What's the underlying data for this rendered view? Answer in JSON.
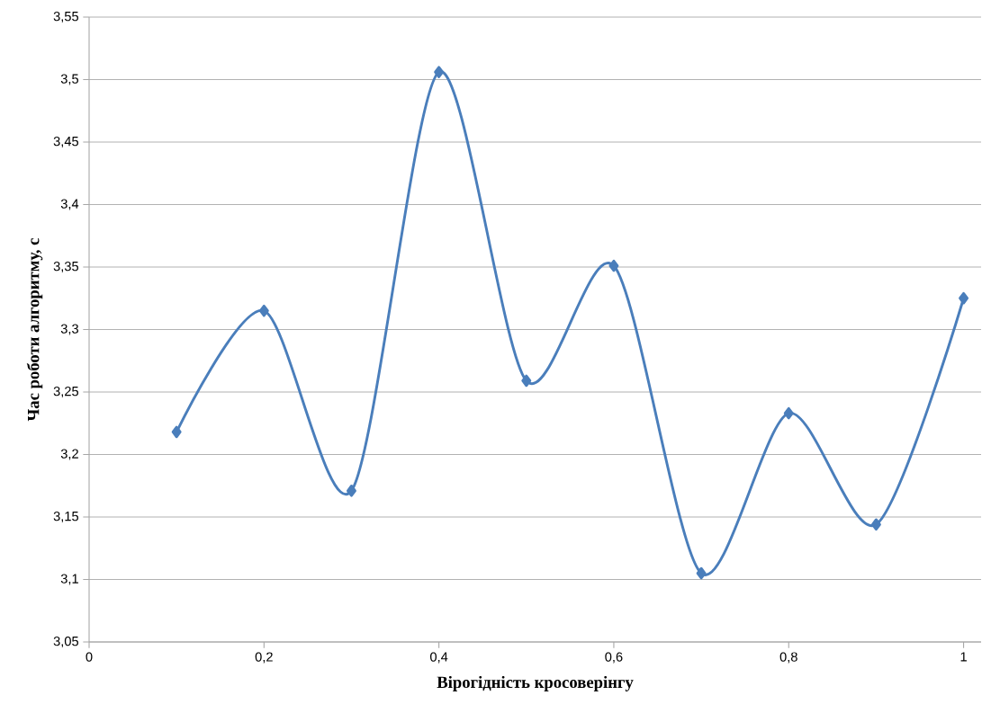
{
  "chart_data": {
    "type": "line",
    "xlabel": "Вірогідність  кросоверінгу",
    "ylabel": "Час роботи алгоритму, с",
    "x": [
      0.1,
      0.2,
      0.3,
      0.4,
      0.5,
      0.6,
      0.7,
      0.8,
      0.9,
      1.0
    ],
    "series": [
      {
        "color": "#4a7ebb",
        "values": [
          3.218,
          3.315,
          3.171,
          3.506,
          3.259,
          3.351,
          3.105,
          3.233,
          3.144,
          3.325
        ]
      }
    ],
    "xlim": [
      0,
      1.02
    ],
    "ylim": [
      3.05,
      3.55
    ],
    "xticks": [
      0,
      {
        "value": 0.2,
        "label": "0,2"
      },
      {
        "value": 0.4,
        "label": "0,4"
      },
      {
        "value": 0.6,
        "label": "0,6"
      },
      {
        "value": 0.8,
        "label": "0,8"
      },
      1
    ],
    "yticks": [
      {
        "value": 3.05,
        "label": "3,05"
      },
      {
        "value": 3.1,
        "label": "3,1"
      },
      {
        "value": 3.15,
        "label": "3,15"
      },
      {
        "value": 3.2,
        "label": "3,2"
      },
      {
        "value": 3.25,
        "label": "3,25"
      },
      {
        "value": 3.3,
        "label": "3,3"
      },
      {
        "value": 3.35,
        "label": "3,35"
      },
      {
        "value": 3.4,
        "label": "3,4"
      },
      {
        "value": 3.45,
        "label": "3,45"
      },
      {
        "value": 3.5,
        "label": "3,5"
      },
      {
        "value": 3.55,
        "label": "3,55"
      }
    ],
    "grid": "y",
    "marker": "diamond",
    "line_style": "solid"
  }
}
